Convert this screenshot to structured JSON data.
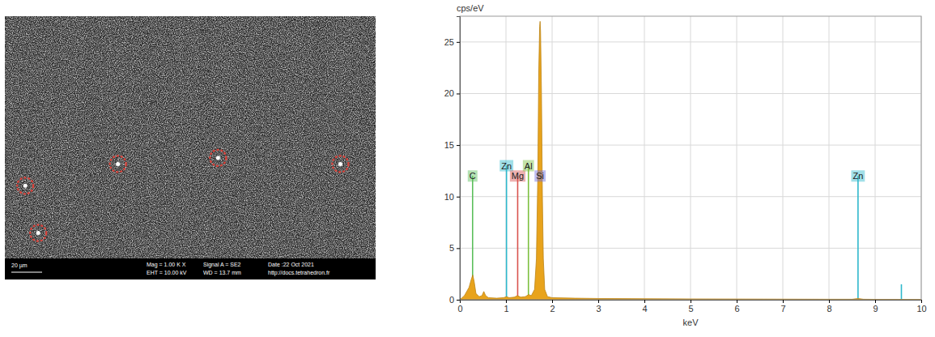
{
  "chart_data": {
    "type": "area",
    "title": "cps/eV",
    "xlabel": "keV",
    "x": [
      0,
      0.1,
      0.2,
      0.25,
      0.28,
      0.31,
      0.35,
      0.42,
      0.48,
      0.52,
      0.56,
      0.62,
      0.8,
      0.95,
      1.01,
      1.07,
      1.18,
      1.25,
      1.32,
      1.42,
      1.49,
      1.55,
      1.62,
      1.66,
      1.69,
      1.71,
      1.73,
      1.74,
      1.75,
      1.77,
      1.79,
      1.81,
      1.84,
      1.9,
      2.0,
      2.5,
      3,
      4,
      5,
      6,
      7,
      8,
      8.5,
      8.63,
      8.75,
      9,
      9.5,
      10
    ],
    "series": [
      {
        "color": "#e8a31c",
        "values": [
          0,
          0.4,
          1.2,
          2.0,
          2.4,
          1.8,
          0.6,
          0.3,
          0.4,
          0.8,
          0.4,
          0.2,
          0.15,
          0.2,
          0.3,
          0.2,
          0.25,
          0.4,
          0.25,
          0.3,
          0.5,
          0.4,
          1.0,
          4,
          12,
          22,
          26.5,
          27,
          26,
          20,
          10,
          4,
          1.0,
          0.3,
          0.2,
          0.15,
          0.12,
          0.1,
          0.08,
          0.07,
          0.06,
          0.05,
          0.05,
          0.12,
          0.05,
          0.04,
          0.04,
          0.03
        ]
      }
    ],
    "markers": [
      {
        "label": "C",
        "energy": 0.277,
        "height": 12,
        "color": "#5cbf5c"
      },
      {
        "label": "Zn",
        "energy": 1.012,
        "height": 13,
        "color": "#2fb8cc"
      },
      {
        "label": "Mg",
        "energy": 1.254,
        "height": 12,
        "color": "#d9534f"
      },
      {
        "label": "Al",
        "energy": 1.487,
        "height": 13,
        "color": "#7cc040"
      },
      {
        "label": "Si",
        "energy": 1.74,
        "height": 12,
        "color": "#6a6ae0"
      },
      {
        "label": "Zn",
        "energy": 8.63,
        "height": 12,
        "color": "#2fb8cc"
      },
      {
        "label": null,
        "energy": 9.57,
        "height": 1.5,
        "color": "#2fb8cc"
      }
    ],
    "xlim": [
      0,
      10
    ],
    "xticks": [
      0,
      1,
      2,
      3,
      4,
      5,
      6,
      7,
      8,
      9,
      10
    ],
    "ylim": [
      0,
      27.5
    ],
    "yticks": [
      0,
      5,
      10,
      15,
      20,
      25
    ],
    "grid": true
  },
  "micrograph": {
    "scale_bar": "20 µm",
    "info": [
      "Mag =  1.00 K X",
      "EHT = 10.00 kV",
      "Signal A = SE2",
      "WD = 13.7 mm",
      "Date :22 Oct 2021",
      "http://docs.tetrahedron.fr"
    ]
  }
}
